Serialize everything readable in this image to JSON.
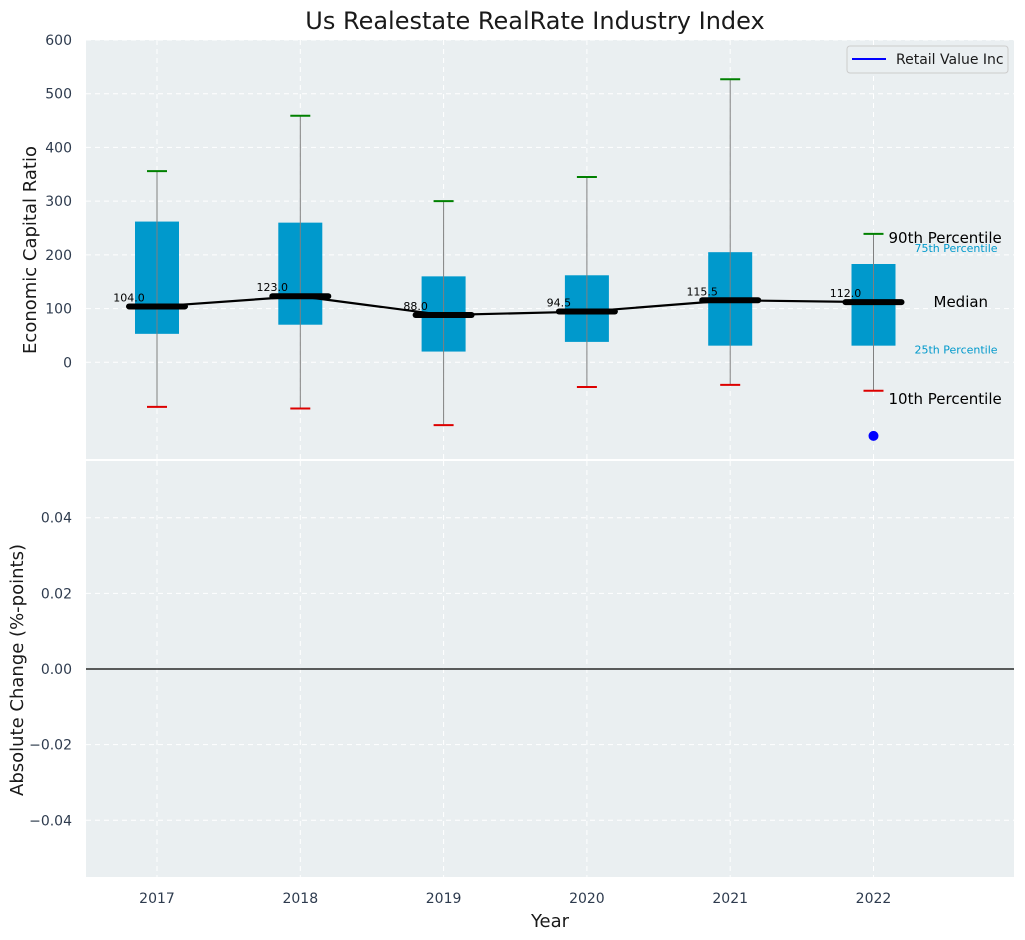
{
  "chart_data": [
    {
      "type": "box",
      "title": "Us Realestate RealRate Industry Index",
      "ylabel": "Economic Capital Ratio",
      "ylim": [
        -180,
        600
      ],
      "yticks": [
        0,
        100,
        200,
        300,
        400,
        500,
        600
      ],
      "categories": [
        "2017",
        "2018",
        "2019",
        "2020",
        "2021",
        "2022"
      ],
      "p10": [
        -83,
        -86,
        -117,
        -46,
        -42,
        -53
      ],
      "p25": [
        53,
        70,
        20,
        38,
        31,
        31
      ],
      "median": [
        104.0,
        123.0,
        88.0,
        94.5,
        115.5,
        112.0
      ],
      "median_labels": [
        "104.0",
        "123.0",
        "88.0",
        "94.5",
        "115.5",
        "112.0"
      ],
      "p75": [
        262,
        260,
        160,
        162,
        205,
        183
      ],
      "p90": [
        356,
        459,
        300,
        345,
        527,
        239
      ],
      "company": {
        "name": "Retail Value Inc",
        "year": "2022",
        "value": -137,
        "color": "#0000ff"
      },
      "annotations": {
        "p90": "90th Percentile",
        "p75": "75th Percentile",
        "median": "Median",
        "p25": "25th Percentile",
        "p10": "10th Percentile"
      },
      "legend": {
        "position": "top-right",
        "entries": [
          "Retail Value Inc"
        ]
      },
      "grid": true
    },
    {
      "type": "line",
      "ylabel": "Absolute Change (%-points)",
      "xlabel": "Year",
      "ylim": [
        -0.055,
        0.055
      ],
      "yticks": [
        -0.04,
        -0.02,
        0.0,
        0.02,
        0.04
      ],
      "ytick_labels": [
        "−0.04",
        "−0.02",
        "0.00",
        "0.02",
        "0.04"
      ],
      "categories": [
        "2017",
        "2018",
        "2019",
        "2020",
        "2021",
        "2022"
      ],
      "hline": 0,
      "grid": true
    }
  ],
  "colors": {
    "background": "#eaeff1",
    "box_fill": "#0099cc",
    "median_line": "#000000",
    "whisker_high": "#008000",
    "whisker_low": "#dd0000",
    "whisker_stem": "#808080"
  }
}
